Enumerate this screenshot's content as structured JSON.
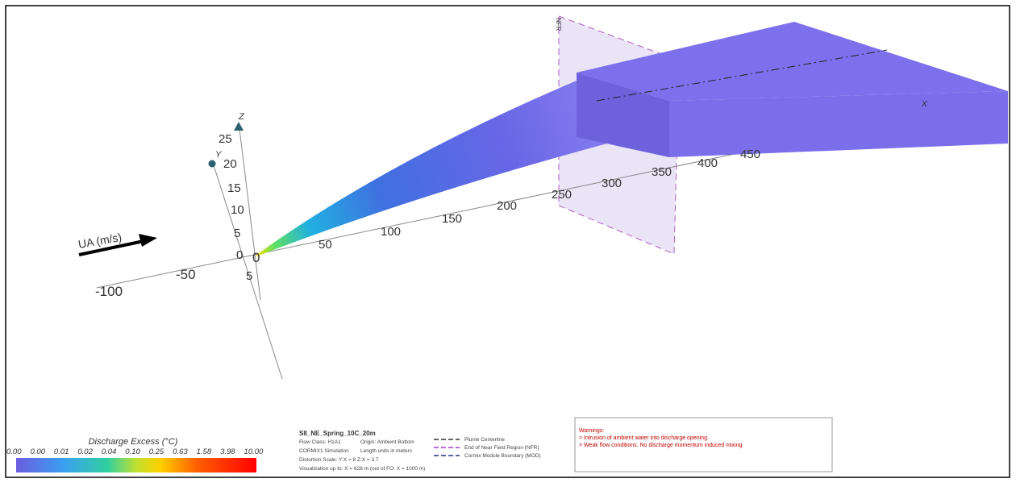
{
  "axes": {
    "z_label": "Z",
    "y_label": "Y",
    "x_label": "X",
    "nfr_label": "NFR",
    "vertical_ticks": [
      "25",
      "20",
      "15",
      "10",
      "5",
      "0",
      "5"
    ],
    "x_ticks": [
      "50",
      "100",
      "150",
      "200",
      "250",
      "300",
      "350",
      "400",
      "450"
    ],
    "negative_ticks": [
      "-50",
      "-100"
    ],
    "origin_label": "0"
  },
  "ambient": {
    "label": "UA (m/s)"
  },
  "legend": {
    "title": "Discharge Excess (°C)",
    "labels": [
      "0.00",
      "0.00",
      "0.01",
      "0.02",
      "0.04",
      "0.10",
      "0.25",
      "0.63",
      "1.58",
      "3.98",
      "10.00"
    ]
  },
  "info": {
    "title": "S8_NE_Spring_10C_20m",
    "lines": [
      "Flow Class: H1A1",
      "Origin: Ambient Bottom",
      "CORMIX1 Simulation",
      "Length units in meters",
      "Distortion Scale:  Y:X = 8   Z:X = 3.7",
      "Visualization up to: X = 628 m (out of FO: X = 1000 m)"
    ]
  },
  "line_legend": [
    "Plume Centerline",
    "End of Near Field Region (NFR)",
    "Cormix Module Boundary (MOD)"
  ],
  "warnings": {
    "title": "Warnings:",
    "items": [
      "> Intrusion of ambient water into discharge opening.",
      "> Weak flow conditions. No discharge momentum induced mixing"
    ]
  }
}
